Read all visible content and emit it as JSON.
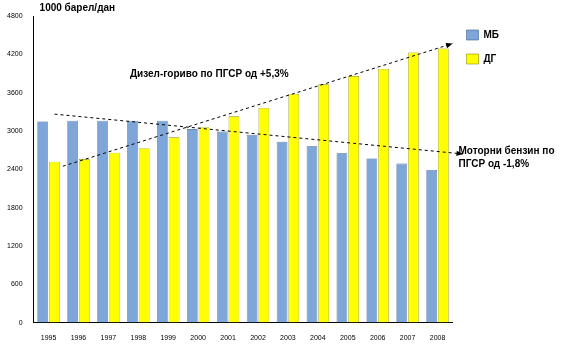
{
  "chart_data": {
    "type": "bar",
    "y_label": "1000 барел/дан",
    "categories": [
      "1995",
      "1996",
      "1997",
      "1998",
      "1999",
      "2000",
      "2001",
      "2002",
      "2003",
      "2004",
      "2005",
      "2006",
      "2007",
      "2008"
    ],
    "series": [
      {
        "name": "МБ",
        "color": "#7ea6d9",
        "values": [
          3150,
          3160,
          3160,
          3160,
          3160,
          3030,
          2990,
          2940,
          2830,
          2760,
          2650,
          2570,
          2490,
          2390
        ]
      },
      {
        "name": "ДГ",
        "color": "#ffff00",
        "values": [
          2520,
          2560,
          2660,
          2730,
          2900,
          3060,
          3230,
          3360,
          3580,
          3730,
          3860,
          3970,
          4230,
          4290
        ]
      }
    ],
    "annotations": [
      "Дизел-гориво по ПГСР од +5,3%",
      "Моторни бензин по ПГСР од -1,8%"
    ],
    "ylim": [
      0,
      4800
    ],
    "yticks": [
      0,
      600,
      1200,
      1800,
      2400,
      3000,
      3600,
      4200,
      4800
    ],
    "grid": false,
    "legend": "right"
  }
}
